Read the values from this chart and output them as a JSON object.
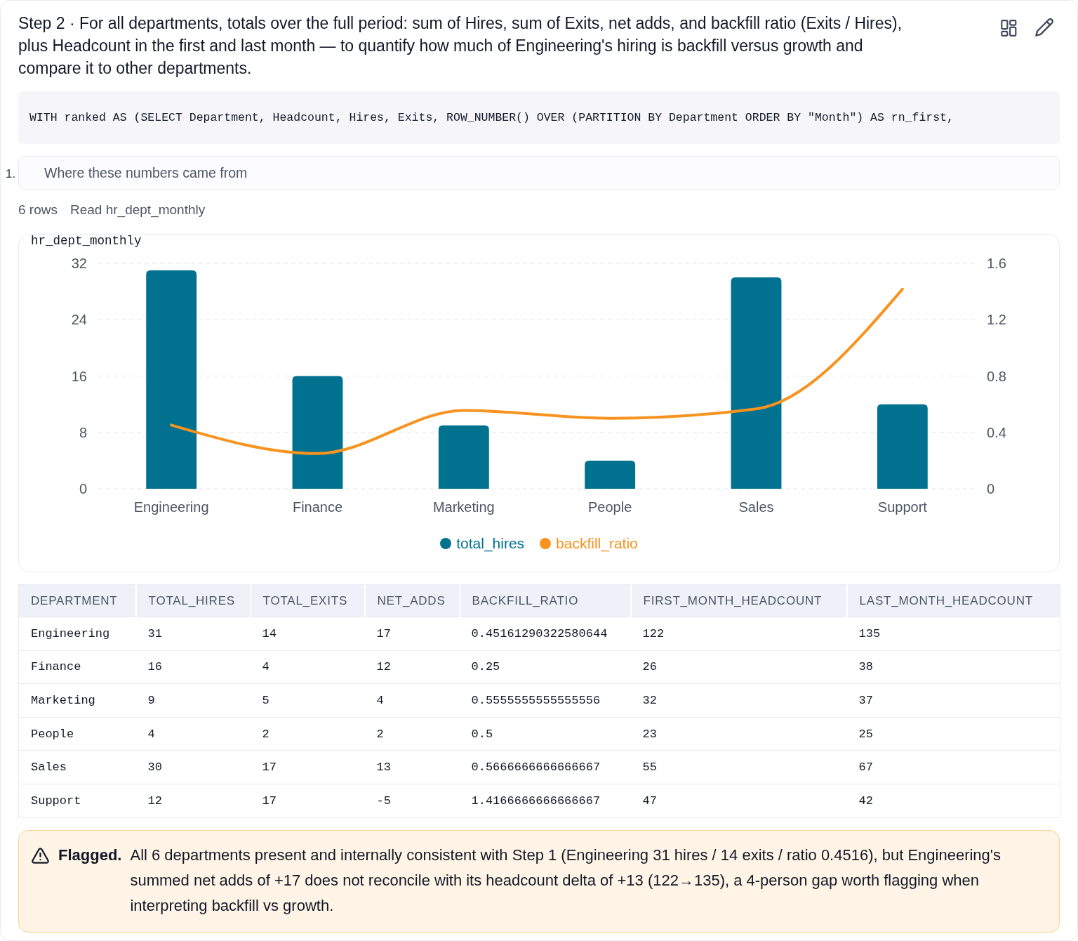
{
  "chart_data": [
    {
      "type": "bar",
      "title": "Step 2 · For all departments, totals over the full period: sum of Hires, sum of Exits, net adds, and backfill ratio (Exits / Hires), plus Headcount in the first and last month — to quantify how much of Engineering's hiring is backfill versus growth and compare it to other departments.",
      "subtitle": "hr_dept_monthly",
      "annotations": [
        "WITH ranked AS (SELECT Department, Headcount, Hires, Exits, ROW_NUMBER() OVER (PARTITION BY Department ORDER BY \"Month\") AS rn_first,",
        "1.",
        "Where these numbers came from",
        "6 rows",
        "Read hr_dept_monthly"
      ],
      "categories": [
        "Engineering",
        "Finance",
        "Marketing",
        "People",
        "Sales",
        "Support"
      ],
      "series": [
        {
          "name": "total_hires",
          "color": "#00718f",
          "values": [
            31,
            16,
            9,
            4,
            30,
            12
          ]
        },
        {
          "name": "backfill_ratio",
          "type": "line",
          "axis": "y2",
          "color": "#f7931e",
          "values": [
            0.45161290322580644,
            0.25,
            0.5555555555555556,
            0.5,
            0.5666666666666667,
            1.4166666666666667
          ]
        }
      ],
      "ylim": [
        0,
        32
      ],
      "yticks": [
        0,
        8,
        16,
        24,
        32
      ],
      "y2lim": [
        0,
        1.6
      ],
      "y2ticks": [
        0,
        0.4,
        0.8,
        1.2,
        1.6
      ],
      "grid": "y",
      "legend": "bottom"
    },
    {
      "type": "other",
      "ylabel": "DEPARTMENT",
      "data_labels": true,
      "categories": [
        "Engineering",
        "Finance",
        "Marketing",
        "People",
        "Sales",
        "Support"
      ],
      "series": [
        {
          "name": "TOTAL_HIRES",
          "values": [
            31,
            16,
            9,
            4,
            30,
            12
          ]
        },
        {
          "name": "TOTAL_EXITS",
          "values": [
            14,
            4,
            5,
            2,
            17,
            17
          ]
        },
        {
          "name": "NET_ADDS",
          "values": [
            17,
            12,
            4,
            2,
            13,
            -5
          ]
        },
        {
          "name": "BACKFILL_RATIO",
          "values": [
            0.45161290322580644,
            0.25,
            0.5555555555555556,
            0.5,
            0.5666666666666667,
            1.4166666666666667
          ]
        },
        {
          "name": "FIRST_MONTH_HEADCOUNT",
          "values": [
            122,
            26,
            32,
            23,
            55,
            47
          ]
        },
        {
          "name": "LAST_MONTH_HEADCOUNT",
          "values": [
            135,
            38,
            37,
            25,
            67,
            42
          ]
        }
      ],
      "annotations": [
        "Flagged.",
        "All 6 departments present and internally consistent with Step 1 (Engineering 31 hires / 14 exits / ratio 0.4516), but Engineering's summed net adds of +17 does not reconcile with its headcount delta of +13 (122→135), a 4-person gap worth flagging when interpreting backfill vs growth."
      ]
    }
  ]
}
